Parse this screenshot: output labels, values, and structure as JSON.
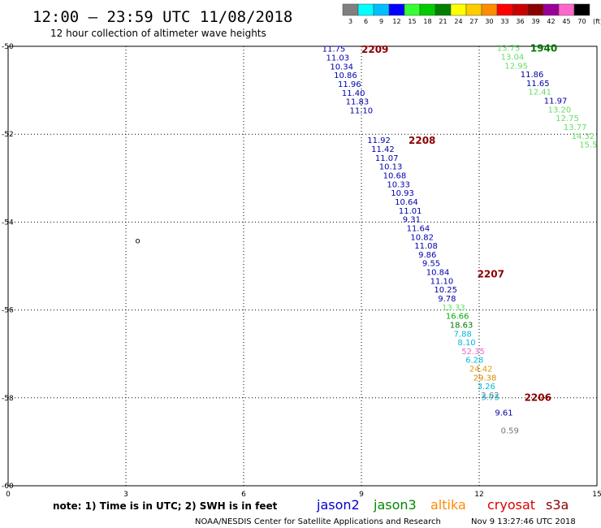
{
  "header": {
    "title": "12:00 – 23:59 UTC 11/08/2018",
    "subtitle": "12 hour collection of altimeter wave heights"
  },
  "color_scale": {
    "colors": [
      "#808080",
      "#00ffff",
      "#00bfff",
      "#0000ff",
      "#33ff33",
      "#00cc00",
      "#008000",
      "#ffff00",
      "#ffcc00",
      "#ff8c00",
      "#ff0000",
      "#cc0000",
      "#8b0000",
      "#990099",
      "#ff66cc",
      "#000000"
    ],
    "labels": [
      "3",
      "6",
      "9",
      "12",
      "15",
      "18",
      "21",
      "24",
      "27",
      "30",
      "33",
      "36",
      "39",
      "42",
      "45",
      "70"
    ],
    "unit": "(ft)"
  },
  "chart_data": {
    "type": "scatter",
    "xlim": [
      0,
      15
    ],
    "ylim": [
      -60,
      -50
    ],
    "x_ticks": [
      "0",
      "3",
      "6",
      "9",
      "12",
      "15"
    ],
    "y_ticks": [
      "-50",
      "-52",
      "-54",
      "-56",
      "-58",
      "-60"
    ],
    "grid": true,
    "land_marker": "o",
    "passes": [
      {
        "time": "2209",
        "color": "#8b0000",
        "x": 9.0,
        "y": -50.06,
        "points": [
          {
            "v": "11.75",
            "x": 8.0,
            "y": -50.05,
            "c": "#0000aa"
          },
          {
            "v": "11.03",
            "x": 8.1,
            "y": -50.25,
            "c": "#0000aa"
          },
          {
            "v": "10.34",
            "x": 8.2,
            "y": -50.45,
            "c": "#0000aa"
          },
          {
            "v": "10.86",
            "x": 8.3,
            "y": -50.65,
            "c": "#0000aa"
          },
          {
            "v": "11.96",
            "x": 8.4,
            "y": -50.85,
            "c": "#0000aa"
          },
          {
            "v": "11.40",
            "x": 8.5,
            "y": -51.05,
            "c": "#0000aa"
          },
          {
            "v": "11.83",
            "x": 8.6,
            "y": -51.25,
            "c": "#0000aa"
          },
          {
            "v": "11.10",
            "x": 8.7,
            "y": -51.45,
            "c": "#0000aa"
          }
        ]
      },
      {
        "time": "2208",
        "color": "#8b0000",
        "x": 10.2,
        "y": -52.13,
        "points": [
          {
            "v": "11.92",
            "x": 9.15,
            "y": -52.13,
            "c": "#0000aa"
          },
          {
            "v": "11.42",
            "x": 9.25,
            "y": -52.33,
            "c": "#0000aa"
          },
          {
            "v": "11.07",
            "x": 9.35,
            "y": -52.53,
            "c": "#0000aa"
          },
          {
            "v": "10.13",
            "x": 9.45,
            "y": -52.73,
            "c": "#0000aa"
          },
          {
            "v": "10.68",
            "x": 9.55,
            "y": -52.93,
            "c": "#0000aa"
          },
          {
            "v": "10.33",
            "x": 9.65,
            "y": -53.13,
            "c": "#0000aa"
          },
          {
            "v": "10.93",
            "x": 9.75,
            "y": -53.33,
            "c": "#0000aa"
          },
          {
            "v": "10.64",
            "x": 9.85,
            "y": -53.53,
            "c": "#0000aa"
          },
          {
            "v": "11.01",
            "x": 9.95,
            "y": -53.73,
            "c": "#0000aa"
          },
          {
            "v": "9.31",
            "x": 10.05,
            "y": -53.93,
            "c": "#0000aa"
          },
          {
            "v": "11.64",
            "x": 10.15,
            "y": -54.13,
            "c": "#0000aa"
          },
          {
            "v": "10.82",
            "x": 10.25,
            "y": -54.33,
            "c": "#0000aa"
          },
          {
            "v": "11.08",
            "x": 10.35,
            "y": -54.53,
            "c": "#0000aa"
          },
          {
            "v": "9.86",
            "x": 10.45,
            "y": -54.73,
            "c": "#0000aa"
          },
          {
            "v": "9.55",
            "x": 10.55,
            "y": -54.93,
            "c": "#0000aa"
          },
          {
            "v": "10.84",
            "x": 10.65,
            "y": -55.13,
            "c": "#0000aa"
          }
        ]
      },
      {
        "time": "2207",
        "color": "#8b0000",
        "x": 11.95,
        "y": -55.17,
        "points": [
          {
            "v": "11.10",
            "x": 10.75,
            "y": -55.33,
            "c": "#0000aa"
          },
          {
            "v": "10.25",
            "x": 10.85,
            "y": -55.53,
            "c": "#0000aa"
          },
          {
            "v": "9.78",
            "x": 10.95,
            "y": -55.73,
            "c": "#0000aa"
          },
          {
            "v": "13.33",
            "x": 11.05,
            "y": -55.93,
            "c": "#66dd66"
          },
          {
            "v": "16.66",
            "x": 11.15,
            "y": -56.13,
            "c": "#00aa00"
          },
          {
            "v": "18.63",
            "x": 11.25,
            "y": -56.33,
            "c": "#007700"
          },
          {
            "v": "7.88",
            "x": 11.35,
            "y": -56.53,
            "c": "#00bbdd"
          },
          {
            "v": "8.10",
            "x": 11.45,
            "y": -56.73,
            "c": "#00bbdd"
          },
          {
            "v": "52.35",
            "x": 11.55,
            "y": -56.93,
            "c": "#ee66cc"
          },
          {
            "v": "6.28",
            "x": 11.65,
            "y": -57.13,
            "c": "#00bbdd"
          },
          {
            "v": "24.42",
            "x": 11.75,
            "y": -57.33,
            "c": "#dd9900"
          },
          {
            "v": "29.38",
            "x": 11.85,
            "y": -57.53,
            "c": "#dd8800"
          },
          {
            "v": "3.26",
            "x": 11.95,
            "y": -57.73,
            "c": "#00bbdd"
          },
          {
            "v": "2.62",
            "x": 12.05,
            "y": -57.93,
            "c": "#777777"
          },
          {
            "v": "3.73",
            "x": 12.05,
            "y": -57.98,
            "c": "#00bbdd"
          }
        ]
      },
      {
        "time": "2206",
        "color": "#8b0000",
        "x": 13.15,
        "y": -57.98,
        "points": [
          {
            "v": "9.61",
            "x": 12.4,
            "y": -58.33,
            "c": "#0000aa"
          },
          {
            "v": "0.59",
            "x": 12.55,
            "y": -58.73,
            "c": "#777777"
          }
        ]
      },
      {
        "time": "1940",
        "color": "#007700",
        "x": 13.3,
        "y": -50.03,
        "points": [
          {
            "v": "13.75",
            "x": 12.45,
            "y": -50.03,
            "c": "#66dd66"
          },
          {
            "v": "13.04",
            "x": 12.55,
            "y": -50.23,
            "c": "#66dd66"
          },
          {
            "v": "12.95",
            "x": 12.65,
            "y": -50.43,
            "c": "#66dd66"
          },
          {
            "v": "11.86",
            "x": 13.05,
            "y": -50.63,
            "c": "#0000aa"
          },
          {
            "v": "11.65",
            "x": 13.2,
            "y": -50.83,
            "c": "#0000aa"
          },
          {
            "v": "12.41",
            "x": 13.25,
            "y": -51.03,
            "c": "#66dd66"
          },
          {
            "v": "11.97",
            "x": 13.65,
            "y": -51.23,
            "c": "#0000aa"
          },
          {
            "v": "13.20",
            "x": 13.75,
            "y": -51.43,
            "c": "#66dd66"
          },
          {
            "v": "12.75",
            "x": 13.95,
            "y": -51.63,
            "c": "#66dd66"
          },
          {
            "v": "13.77",
            "x": 14.15,
            "y": -51.83,
            "c": "#66dd66"
          },
          {
            "v": "14.32",
            "x": 14.35,
            "y": -52.03,
            "c": "#66dd66"
          },
          {
            "v": "15.5",
            "x": 14.55,
            "y": -52.23,
            "c": "#66dd66"
          }
        ]
      }
    ]
  },
  "footer": {
    "note": "note: 1) Time is in UTC; 2) SWH is in feet",
    "satellites": [
      {
        "name": "jason2",
        "color": "#0000cc"
      },
      {
        "name": "jason3",
        "color": "#008800"
      },
      {
        "name": "altika",
        "color": "#ff8c00"
      },
      {
        "name": "cryosat",
        "color": "#dd0000"
      },
      {
        "name": "s3a",
        "color": "#8b0000"
      }
    ],
    "credit": "NOAA/NESDIS Center for Satellite Applications and Research",
    "timestamp": "Nov  9 13:27:46 UTC 2018"
  }
}
